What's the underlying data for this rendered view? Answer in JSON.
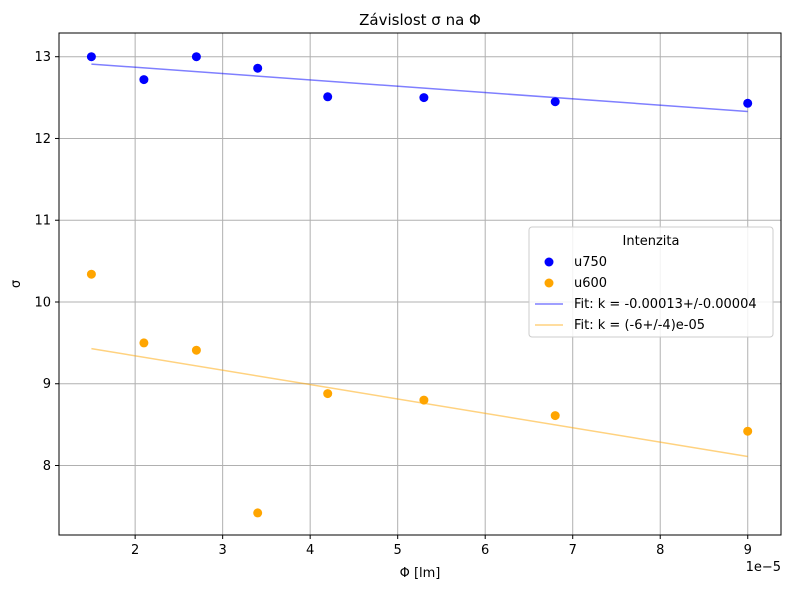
{
  "chart_data": {
    "type": "scatter",
    "title": "Závislost σ na Φ",
    "xlabel": "Φ [lm]",
    "ylabel": "σ",
    "x_offset_label": "1e−5",
    "xlim": [
      1.13,
      9.38
    ],
    "ylim": [
      7.15,
      13.29
    ],
    "grid": true,
    "x_ticks": [
      {
        "value": 2,
        "label": "2"
      },
      {
        "value": 3,
        "label": "3"
      },
      {
        "value": 4,
        "label": "4"
      },
      {
        "value": 5,
        "label": "5"
      },
      {
        "value": 6,
        "label": "6"
      },
      {
        "value": 7,
        "label": "7"
      },
      {
        "value": 8,
        "label": "8"
      },
      {
        "value": 9,
        "label": "9"
      }
    ],
    "y_ticks": [
      {
        "value": 8,
        "label": "8"
      },
      {
        "value": 9,
        "label": "9"
      },
      {
        "value": 10,
        "label": "10"
      },
      {
        "value": 11,
        "label": "11"
      },
      {
        "value": 12,
        "label": "12"
      },
      {
        "value": 13,
        "label": "13"
      }
    ],
    "legend": {
      "title": "Intenzita",
      "position": "center-right"
    },
    "series": [
      {
        "name": "u750",
        "kind": "scatter",
        "color": "#0000ff",
        "x": [
          1.5,
          2.1,
          2.7,
          3.4,
          4.2,
          5.3,
          6.8,
          9.0
        ],
        "y": [
          13.0,
          12.72,
          13.0,
          12.86,
          12.51,
          12.5,
          12.45,
          12.43
        ]
      },
      {
        "name": "u600",
        "kind": "scatter",
        "color": "#ffa500",
        "x": [
          1.5,
          2.1,
          2.7,
          3.4,
          4.2,
          5.3,
          6.8,
          9.0
        ],
        "y": [
          10.34,
          9.5,
          9.41,
          7.42,
          8.88,
          8.8,
          8.61,
          8.42
        ]
      },
      {
        "name": "Fit: k = -0.00013+/-0.00004",
        "kind": "line",
        "color": "#0000ff",
        "opacity": 0.5,
        "x": [
          1.5,
          9.0
        ],
        "y": [
          12.91,
          12.33
        ]
      },
      {
        "name": "Fit: k = (-6+/-4)e-05",
        "kind": "line",
        "color": "#ffa500",
        "opacity": 0.5,
        "x": [
          1.5,
          9.0
        ],
        "y": [
          9.43,
          8.11
        ]
      }
    ]
  }
}
